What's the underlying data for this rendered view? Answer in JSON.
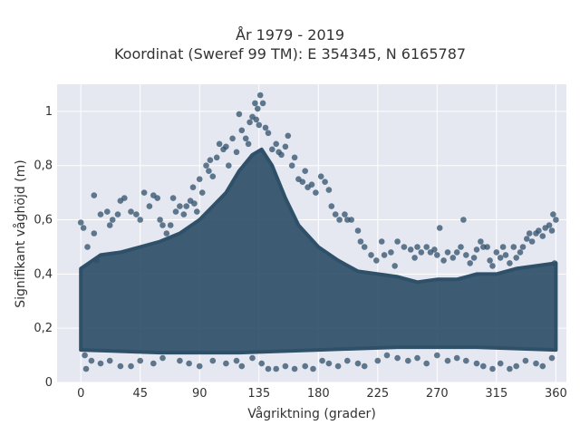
{
  "chart_data": {
    "type": "scatter",
    "title": "År 1979 - 2019",
    "subtitle": "Koordinat (Sweref 99 TM): E 354345, N 6165787",
    "xlabel": "Vågriktning (grader)",
    "ylabel": "Signifikant våghöjd (m)",
    "xlim": [
      -18,
      368
    ],
    "ylim": [
      0,
      1.1
    ],
    "x_ticks": [
      0,
      45,
      90,
      135,
      180,
      225,
      270,
      315,
      360
    ],
    "x_tick_labels": [
      "0",
      "45",
      "90",
      "135",
      "180",
      "225",
      "270",
      "315",
      "360"
    ],
    "y_ticks": [
      0,
      0.2,
      0.4,
      0.6,
      0.8,
      1
    ],
    "y_tick_labels": [
      "0",
      "0,2",
      "0,4",
      "0,6",
      "0,8",
      "1"
    ],
    "grid": true,
    "marker_color": "#2f5069",
    "background_color": "#e5e7f1",
    "points": [
      [
        0,
        0.59
      ],
      [
        2,
        0.57
      ],
      [
        4,
        0.05
      ],
      [
        5,
        0.5
      ],
      [
        10,
        0.55
      ],
      [
        12,
        0.45
      ],
      [
        10,
        0.69
      ],
      [
        15,
        0.62
      ],
      [
        20,
        0.63
      ],
      [
        22,
        0.58
      ],
      [
        24,
        0.6
      ],
      [
        28,
        0.62
      ],
      [
        30,
        0.67
      ],
      [
        33,
        0.68
      ],
      [
        38,
        0.63
      ],
      [
        42,
        0.62
      ],
      [
        45,
        0.6
      ],
      [
        48,
        0.7
      ],
      [
        52,
        0.65
      ],
      [
        55,
        0.69
      ],
      [
        58,
        0.68
      ],
      [
        60,
        0.6
      ],
      [
        62,
        0.58
      ],
      [
        65,
        0.55
      ],
      [
        68,
        0.58
      ],
      [
        70,
        0.68
      ],
      [
        72,
        0.63
      ],
      [
        75,
        0.65
      ],
      [
        78,
        0.62
      ],
      [
        80,
        0.65
      ],
      [
        83,
        0.67
      ],
      [
        86,
        0.66
      ],
      [
        88,
        0.63
      ],
      [
        85,
        0.72
      ],
      [
        90,
        0.75
      ],
      [
        92,
        0.7
      ],
      [
        95,
        0.8
      ],
      [
        97,
        0.78
      ],
      [
        98,
        0.82
      ],
      [
        100,
        0.76
      ],
      [
        103,
        0.83
      ],
      [
        105,
        0.88
      ],
      [
        108,
        0.86
      ],
      [
        110,
        0.87
      ],
      [
        112,
        0.8
      ],
      [
        115,
        0.9
      ],
      [
        118,
        0.85
      ],
      [
        120,
        0.99
      ],
      [
        122,
        0.93
      ],
      [
        125,
        0.9
      ],
      [
        127,
        0.88
      ],
      [
        128,
        0.96
      ],
      [
        130,
        0.98
      ],
      [
        132,
        1.03
      ],
      [
        133,
        0.97
      ],
      [
        134,
        1.01
      ],
      [
        135,
        0.95
      ],
      [
        136,
        1.06
      ],
      [
        138,
        1.03
      ],
      [
        140,
        0.94
      ],
      [
        142,
        0.92
      ],
      [
        145,
        0.86
      ],
      [
        148,
        0.88
      ],
      [
        150,
        0.85
      ],
      [
        152,
        0.84
      ],
      [
        155,
        0.87
      ],
      [
        157,
        0.91
      ],
      [
        160,
        0.8
      ],
      [
        162,
        0.83
      ],
      [
        165,
        0.75
      ],
      [
        168,
        0.74
      ],
      [
        170,
        0.78
      ],
      [
        172,
        0.72
      ],
      [
        175,
        0.73
      ],
      [
        178,
        0.7
      ],
      [
        182,
        0.76
      ],
      [
        185,
        0.74
      ],
      [
        188,
        0.71
      ],
      [
        190,
        0.65
      ],
      [
        193,
        0.62
      ],
      [
        196,
        0.6
      ],
      [
        200,
        0.62
      ],
      [
        202,
        0.6
      ],
      [
        205,
        0.6
      ],
      [
        210,
        0.56
      ],
      [
        212,
        0.52
      ],
      [
        215,
        0.5
      ],
      [
        220,
        0.47
      ],
      [
        224,
        0.45
      ],
      [
        228,
        0.52
      ],
      [
        230,
        0.47
      ],
      [
        235,
        0.48
      ],
      [
        238,
        0.43
      ],
      [
        240,
        0.52
      ],
      [
        245,
        0.5
      ],
      [
        250,
        0.49
      ],
      [
        253,
        0.46
      ],
      [
        255,
        0.5
      ],
      [
        258,
        0.48
      ],
      [
        262,
        0.5
      ],
      [
        265,
        0.48
      ],
      [
        268,
        0.49
      ],
      [
        270,
        0.47
      ],
      [
        272,
        0.57
      ],
      [
        275,
        0.45
      ],
      [
        278,
        0.48
      ],
      [
        282,
        0.46
      ],
      [
        285,
        0.48
      ],
      [
        288,
        0.5
      ],
      [
        290,
        0.6
      ],
      [
        292,
        0.47
      ],
      [
        295,
        0.44
      ],
      [
        298,
        0.46
      ],
      [
        300,
        0.49
      ],
      [
        303,
        0.52
      ],
      [
        305,
        0.5
      ],
      [
        308,
        0.5
      ],
      [
        310,
        0.45
      ],
      [
        312,
        0.43
      ],
      [
        315,
        0.48
      ],
      [
        318,
        0.46
      ],
      [
        320,
        0.5
      ],
      [
        322,
        0.47
      ],
      [
        325,
        0.44
      ],
      [
        328,
        0.5
      ],
      [
        330,
        0.46
      ],
      [
        333,
        0.48
      ],
      [
        335,
        0.5
      ],
      [
        338,
        0.53
      ],
      [
        340,
        0.55
      ],
      [
        342,
        0.52
      ],
      [
        345,
        0.55
      ],
      [
        347,
        0.56
      ],
      [
        350,
        0.54
      ],
      [
        352,
        0.57
      ],
      [
        355,
        0.58
      ],
      [
        357,
        0.56
      ],
      [
        358,
        0.62
      ],
      [
        360,
        0.6
      ],
      [
        359,
        0.44
      ],
      [
        3,
        0.1
      ],
      [
        8,
        0.08
      ],
      [
        15,
        0.07
      ],
      [
        22,
        0.08
      ],
      [
        30,
        0.06
      ],
      [
        38,
        0.06
      ],
      [
        45,
        0.08
      ],
      [
        55,
        0.07
      ],
      [
        62,
        0.09
      ],
      [
        75,
        0.08
      ],
      [
        82,
        0.07
      ],
      [
        90,
        0.06
      ],
      [
        100,
        0.08
      ],
      [
        110,
        0.07
      ],
      [
        118,
        0.08
      ],
      [
        122,
        0.06
      ],
      [
        130,
        0.09
      ],
      [
        137,
        0.07
      ],
      [
        142,
        0.05
      ],
      [
        148,
        0.05
      ],
      [
        155,
        0.06
      ],
      [
        162,
        0.05
      ],
      [
        170,
        0.06
      ],
      [
        176,
        0.05
      ],
      [
        183,
        0.08
      ],
      [
        188,
        0.07
      ],
      [
        195,
        0.06
      ],
      [
        202,
        0.08
      ],
      [
        210,
        0.07
      ],
      [
        215,
        0.06
      ],
      [
        225,
        0.08
      ],
      [
        232,
        0.1
      ],
      [
        240,
        0.09
      ],
      [
        248,
        0.08
      ],
      [
        255,
        0.09
      ],
      [
        262,
        0.07
      ],
      [
        270,
        0.1
      ],
      [
        278,
        0.08
      ],
      [
        285,
        0.09
      ],
      [
        292,
        0.08
      ],
      [
        300,
        0.07
      ],
      [
        305,
        0.06
      ],
      [
        312,
        0.05
      ],
      [
        318,
        0.07
      ],
      [
        325,
        0.05
      ],
      [
        330,
        0.06
      ],
      [
        337,
        0.08
      ],
      [
        345,
        0.07
      ],
      [
        350,
        0.06
      ],
      [
        357,
        0.09
      ]
    ]
  }
}
